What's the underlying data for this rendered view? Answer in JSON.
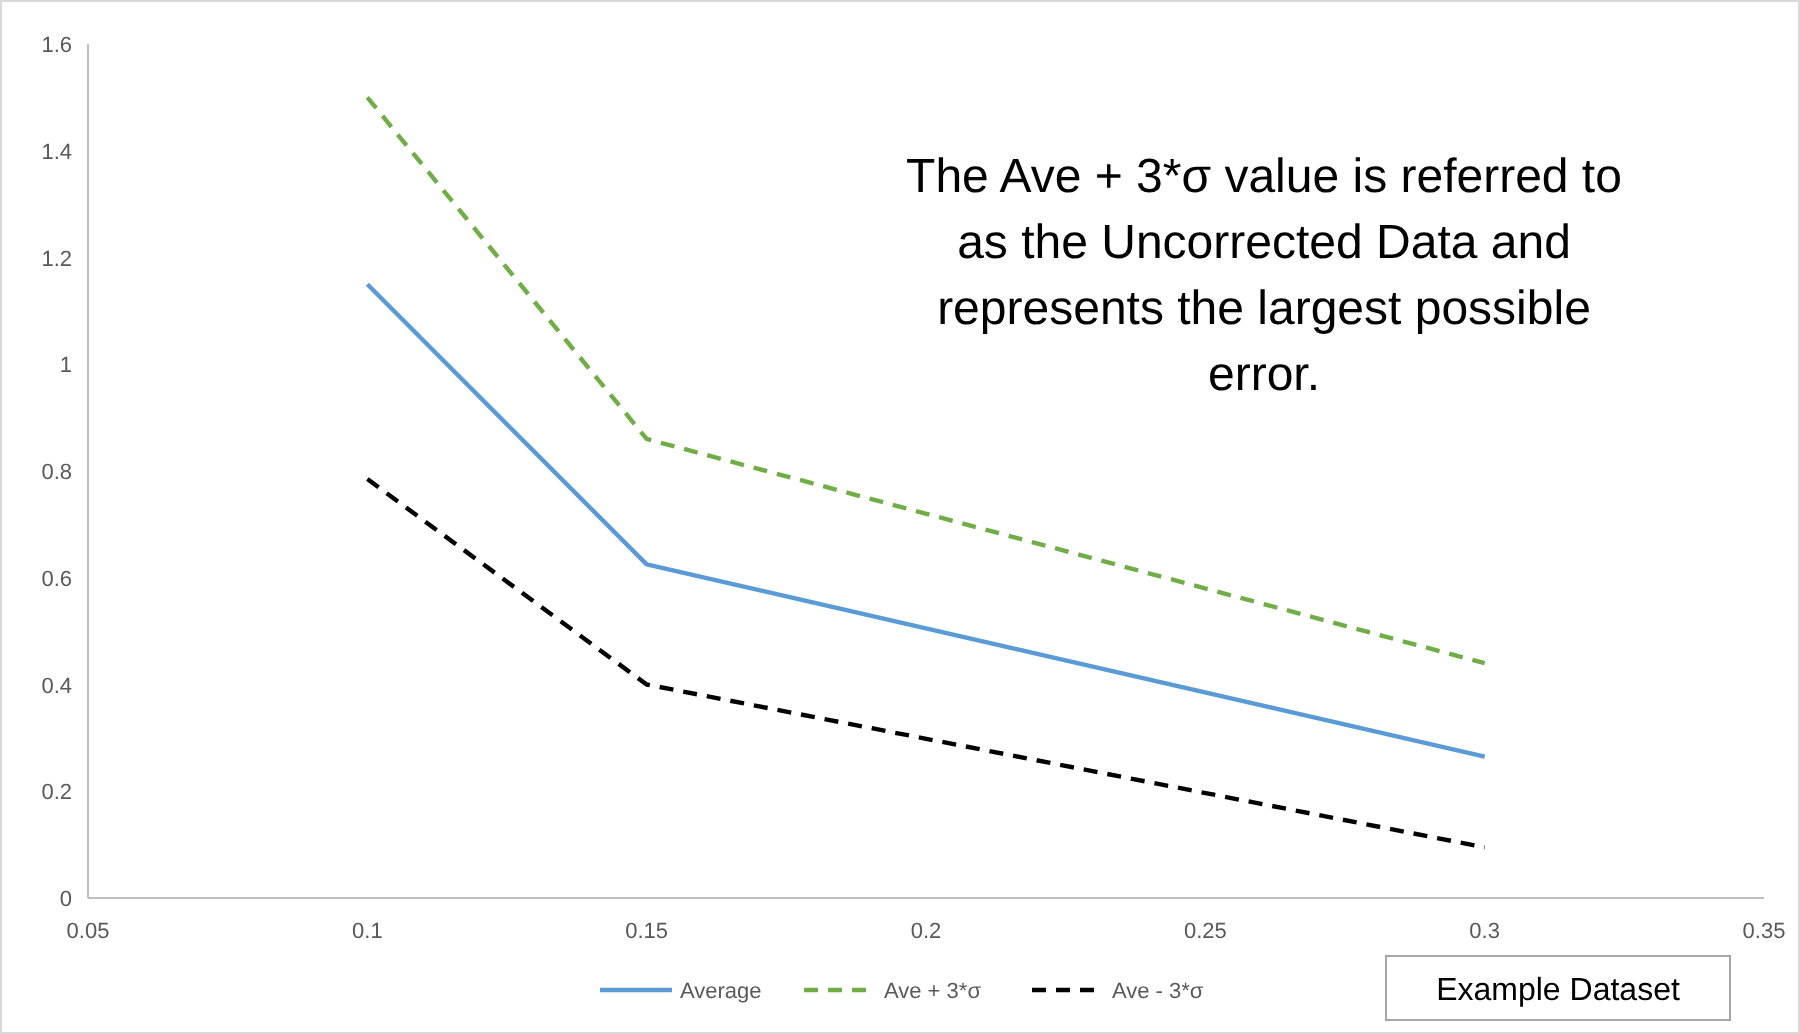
{
  "chart_data": {
    "type": "line",
    "x": [
      0.1,
      0.15,
      0.3
    ],
    "series": [
      {
        "name": "Average",
        "color": "#5b9bd5",
        "line_style": "solid",
        "values": [
          1.15,
          0.625,
          0.265
        ]
      },
      {
        "name": "Ave + 3*σ",
        "color": "#70ad47",
        "line_style": "dashed",
        "values": [
          1.5,
          0.86,
          0.44
        ]
      },
      {
        "name": "Ave - 3*σ",
        "color": "#000000",
        "line_style": "dashed",
        "values": [
          0.785,
          0.4,
          0.095
        ]
      }
    ],
    "xlim": [
      0.05,
      0.35
    ],
    "xticks": [
      0.05,
      0.1,
      0.15,
      0.2,
      0.25,
      0.3,
      0.35
    ],
    "ylim": [
      0,
      1.6
    ],
    "yticks": [
      0,
      0.2,
      0.4,
      0.6,
      0.8,
      1,
      1.2,
      1.4,
      1.6
    ],
    "grid": false,
    "legend": "bottom",
    "marker": "none",
    "annotations": [
      "The Ave + 3*σ value is referred to as the Uncorrected Data and represents the largest possible error.",
      "Example Dataset"
    ]
  }
}
